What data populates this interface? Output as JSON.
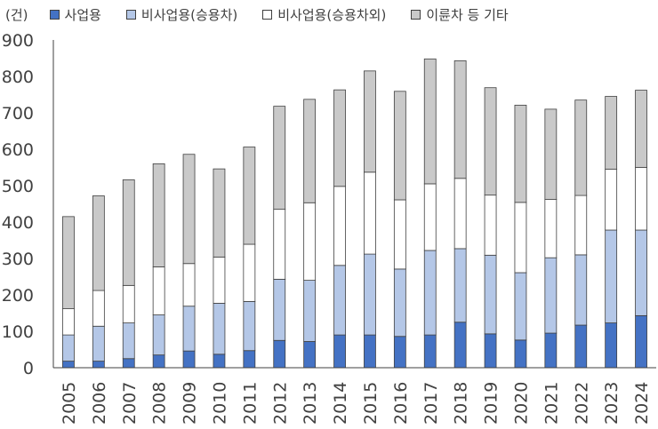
{
  "chart_data": {
    "type": "bar",
    "stacked": true,
    "unit_label": "(건)",
    "categories": [
      "2005",
      "2006",
      "2007",
      "2008",
      "2009",
      "2010",
      "2011",
      "2012",
      "2013",
      "2014",
      "2015",
      "2016",
      "2017",
      "2018",
      "2019",
      "2020",
      "2021",
      "2022",
      "2023",
      "2024"
    ],
    "series": [
      {
        "name": "사업용",
        "color": "#4472c4",
        "values": [
          18,
          18,
          25,
          35,
          46,
          37,
          47,
          75,
          72,
          90,
          90,
          86,
          90,
          125,
          93,
          76,
          95,
          117,
          123,
          143
        ]
      },
      {
        "name": "비사업용(승용차)",
        "color": "#b4c7e7",
        "values": [
          72,
          96,
          98,
          110,
          123,
          140,
          135,
          168,
          168,
          191,
          222,
          185,
          232,
          202,
          216,
          185,
          207,
          193,
          255,
          235
        ]
      },
      {
        "name": "비사업용(승용차외)",
        "color": "#ffffff",
        "values": [
          72,
          98,
          103,
          132,
          117,
          127,
          157,
          192,
          213,
          217,
          225,
          190,
          183,
          193,
          165,
          193,
          160,
          163,
          167,
          172
        ]
      },
      {
        "name": "이륜차 등 기타",
        "color": "#c9c9c9",
        "values": [
          253,
          260,
          290,
          283,
          300,
          242,
          267,
          283,
          284,
          265,
          278,
          298,
          343,
          323,
          295,
          267,
          248,
          262,
          200,
          212
        ]
      }
    ],
    "ylim": [
      0,
      900
    ],
    "yticks": [
      0,
      100,
      200,
      300,
      400,
      500,
      600,
      700,
      800,
      900
    ],
    "legend_position": "top-left",
    "grid": false
  }
}
